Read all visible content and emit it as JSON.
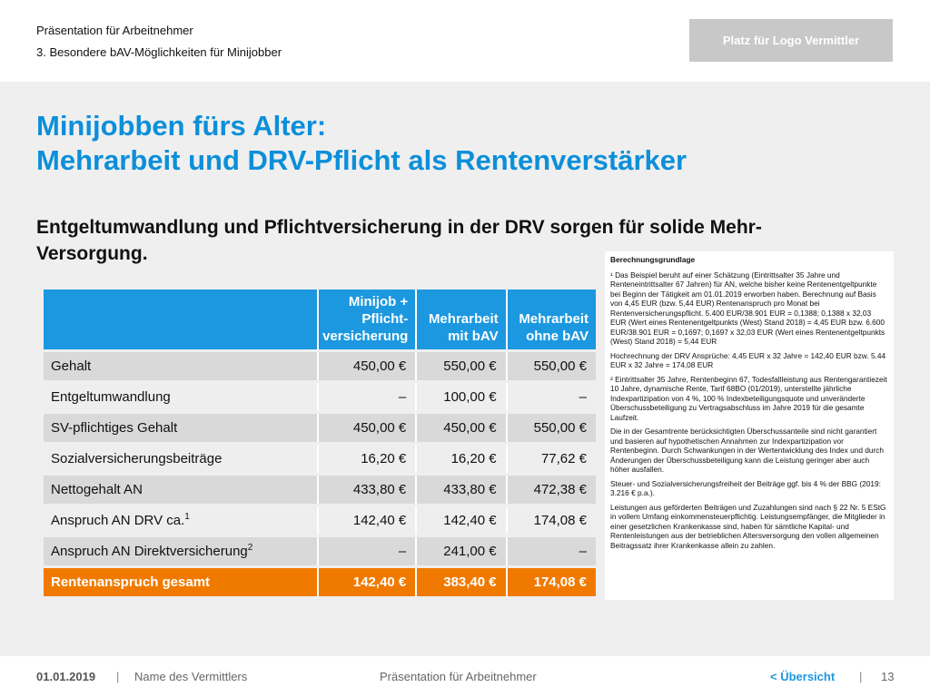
{
  "header": {
    "kicker": "Präsentation für Arbeitnehmer",
    "subtitle": "3. Besondere bAV-Möglichkeiten für Minijobber",
    "logo_placeholder": "Platz für Logo Vermittler"
  },
  "title": {
    "line1": "Minijobben fürs Alter:",
    "line2": "Mehrarbeit und DRV-Pflicht als Rentenverstärker"
  },
  "lead": "Entgeltumwandlung und Pflichtversicherung in der DRV sorgen für solide Mehr-Versorgung.",
  "table": {
    "columns": [
      "Minijob + Pflicht-versicherung",
      "Mehrarbeit mit bAV",
      "Mehrarbeit ohne bAV"
    ],
    "rows": [
      {
        "label": "Gehalt",
        "sup": "",
        "values": [
          "450,00 €",
          "550,00 €",
          "550,00 €"
        ]
      },
      {
        "label": "Entgeltumwandlung",
        "sup": "",
        "values": [
          "–",
          "100,00 €",
          "–"
        ]
      },
      {
        "label": "SV-pflichtiges Gehalt",
        "sup": "",
        "values": [
          "450,00 €",
          "450,00 €",
          "550,00 €"
        ]
      },
      {
        "label": "Sozialversicherungsbeiträge",
        "sup": "",
        "values": [
          "16,20 €",
          "16,20 €",
          "77,62 €"
        ]
      },
      {
        "label": "Nettogehalt AN",
        "sup": "",
        "values": [
          "433,80 €",
          "433,80 €",
          "472,38 €"
        ]
      },
      {
        "label": "Anspruch AN DRV ca.",
        "sup": "1",
        "values": [
          "142,40 €",
          "142,40 €",
          "174,08 €"
        ]
      },
      {
        "label": "Anspruch AN Direktversicherung",
        "sup": "2",
        "values": [
          "–",
          "241,00 €",
          "–"
        ]
      },
      {
        "label": "Rentenanspruch gesamt",
        "sup": "",
        "values": [
          "142,40 €",
          "383,40 €",
          "174,08 €"
        ]
      }
    ]
  },
  "notes": {
    "heading": "Berechnungsgrundlage",
    "paragraphs": [
      "¹ Das Beispiel beruht auf einer Schätzung (Eintrittsalter 35 Jahre und Renteneintrittsalter 67 Jahren) für AN, welche bisher keine Rentenentgeltpunkte bei Beginn der Tätigkeit am 01.01.2019 erworben haben. Berechnung auf Basis von 4,45 EUR (bzw. 5,44 EUR) Rentenanspruch pro Monat bei Rentenversicherungspflicht. 5.400 EUR/38.901 EUR = 0,1388; 0,1388 x 32,03 EUR (Wert eines Rentenentgeltpunkts (West) Stand 2018) = 4,45 EUR bzw. 6.600 EUR/38.901 EUR = 0,1697; 0,1697 x 32,03 EUR (Wert eines Rentenentgeltpunkts (West) Stand 2018) = 5,44 EUR",
      "Hochrechnung der DRV Ansprüche: 4,45 EUR x 32 Jahre = 142,40 EUR bzw. 5.44 EUR x 32 Jahre = 174,08 EUR",
      "² Eintrittsalter 35 Jahre, Rentenbeginn 67, Todesfallleistung aus Rentengarantiezeit 10 Jahre, dynamische Rente, Tarif 68BO (01/2019), unterstellte jährliche Indexpartizipation von 4 %, 100 % Indexbeteiligungsquote und unveränderte Überschussbeteiligung zu Vertragsabschluss im Jahre 2019 für die gesamte Laufzeit.",
      "Die in der Gesamtrente berücksichtigten Überschussanteile sind nicht garantiert und basieren auf hypothetischen Annahmen zur Indexpartizipation vor Rentenbeginn. Durch Schwankungen in der Wertentwicklung des Index und durch Änderungen der Überschussbeteiligung kann die Leistung geringer aber auch höher ausfallen.",
      "Steuer- und Sozialversicherungsfreiheit der Beiträge ggf. bis 4 % der BBG (2019: 3.216 € p.a.).",
      "Leistungen aus geförderten Beiträgen und Zuzahlungen sind nach § 22 Nr. 5 EStG in vollem Umfang einkommensteuerpflichtig. Leistungsempfänger, die Mitglieder in einer gesetzlichen Krankenkasse sind, haben für sämtliche Kapital- und Rentenleistungen aus der betrieblichen Altersversorgung den vollen allgemeinen Beitragssatz ihrer Krankenkasse allein zu zahlen."
    ]
  },
  "footer": {
    "date": "01.01.2019",
    "separator": "|",
    "name": "Name des Vermittlers",
    "presentation": "Präsentation für Arbeitnehmer",
    "overview": "< Übersicht",
    "page": "13"
  }
}
